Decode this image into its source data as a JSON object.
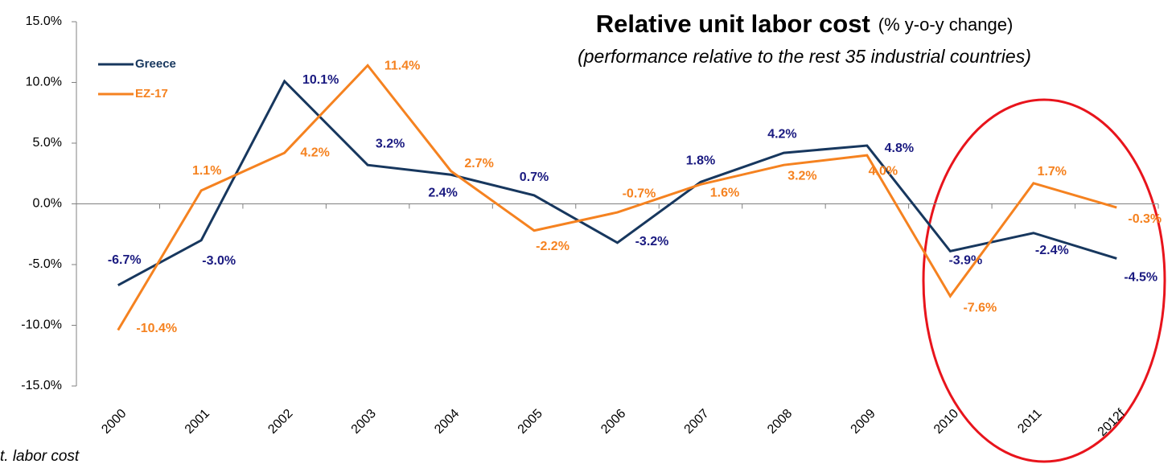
{
  "chart_data": {
    "type": "line",
    "title": "Relative unit labor cost",
    "title_suffix": "(% y-o-y change)",
    "subtitle": "(performance relative to the rest 35 industrial countries)",
    "footnote": "t. labor cost",
    "categories": [
      "2000",
      "2001",
      "2002",
      "2003",
      "2004",
      "2005",
      "2006",
      "2007",
      "2008",
      "2009",
      "2010",
      "2011",
      "2012f"
    ],
    "series": [
      {
        "name": "Greece",
        "color": "#17375e",
        "label_color": "#1a1a80",
        "values": [
          -6.7,
          -3.0,
          10.1,
          3.2,
          2.4,
          0.7,
          -3.2,
          1.8,
          4.2,
          4.8,
          -3.9,
          -2.4,
          -4.5
        ],
        "value_labels": [
          "-6.7%",
          "-3.0%",
          "10.1%",
          "3.2%",
          "2.4%",
          "0.7%",
          "-3.2%",
          "1.8%",
          "4.2%",
          "4.8%",
          "-3.9%",
          "-2.4%",
          "-4.5%"
        ]
      },
      {
        "name": "EZ-17",
        "color": "#f58220",
        "label_color": "#f58220",
        "values": [
          -10.4,
          1.1,
          4.2,
          11.4,
          2.7,
          -2.2,
          -0.7,
          1.6,
          3.2,
          4.0,
          -7.6,
          1.7,
          -0.3
        ],
        "value_labels": [
          "-10.4%",
          "1.1%",
          "4.2%",
          "11.4%",
          "2.7%",
          "-2.2%",
          "-0.7%",
          "1.6%",
          "3.2%",
          "4.0%",
          "-7.6%",
          "1.7%",
          "-0.3%"
        ]
      }
    ],
    "ylim": [
      -15,
      15
    ],
    "yticks": [
      {
        "value": -15,
        "label": "-15.0%"
      },
      {
        "value": -10,
        "label": "-10.0%"
      },
      {
        "value": -5,
        "label": "-5.0%"
      },
      {
        "value": 0,
        "label": "0.0%"
      },
      {
        "value": 5,
        "label": "5.0%"
      },
      {
        "value": 10,
        "label": "10.0%"
      },
      {
        "value": 15,
        "label": "15.0%"
      }
    ],
    "legend": "upper left"
  }
}
